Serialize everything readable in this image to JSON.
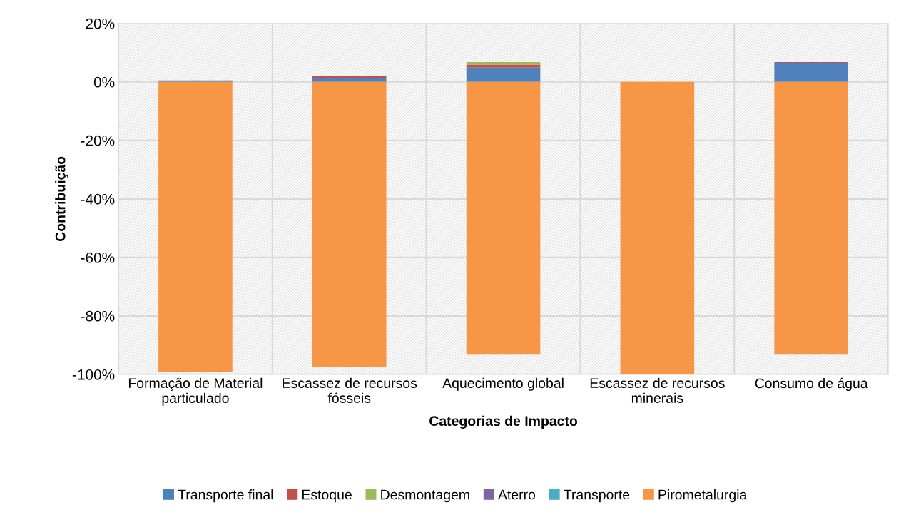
{
  "chart_data": {
    "type": "bar",
    "stacked": true,
    "xlabel": "Categorias de Impacto",
    "ylabel": "Contribuição",
    "categories": [
      "Formação de Material particulado",
      "Escassez de recursos fósseis",
      "Aquecimento global",
      "Escassez de recursos minerais",
      "Consumo de água"
    ],
    "series": [
      {
        "name": "Transporte final",
        "color": "#4f81bd",
        "values": [
          0.5,
          1.2,
          4.9,
          null,
          6.4
        ]
      },
      {
        "name": "Estoque",
        "color": "#c0504d",
        "values": [
          null,
          0.8,
          1.0,
          null,
          0.4
        ]
      },
      {
        "name": "Desmontagem",
        "color": "#9bbb59",
        "values": [
          null,
          null,
          0.9,
          null,
          null
        ]
      },
      {
        "name": "Aterro",
        "color": "#8064a2",
        "values": [
          null,
          null,
          null,
          null,
          null
        ]
      },
      {
        "name": "Transporte",
        "color": "#4bacc6",
        "values": [
          null,
          null,
          null,
          null,
          null
        ]
      },
      {
        "name": "Pirometalurgia",
        "color": "#f79646",
        "values": [
          -99.3,
          -97.6,
          -93.0,
          -100.0,
          -93.0
        ]
      }
    ],
    "ylim": [
      -100,
      20
    ],
    "yticks": [
      {
        "value": -100,
        "label": "-100%"
      },
      {
        "value": -80,
        "label": "-80%"
      },
      {
        "value": -60,
        "label": "-60%"
      },
      {
        "value": -40,
        "label": "-40%"
      },
      {
        "value": -20,
        "label": "-20%"
      },
      {
        "value": 0,
        "label": "0%"
      },
      {
        "value": 20,
        "label": "20%"
      }
    ],
    "grid": true,
    "legend": "bottom"
  }
}
